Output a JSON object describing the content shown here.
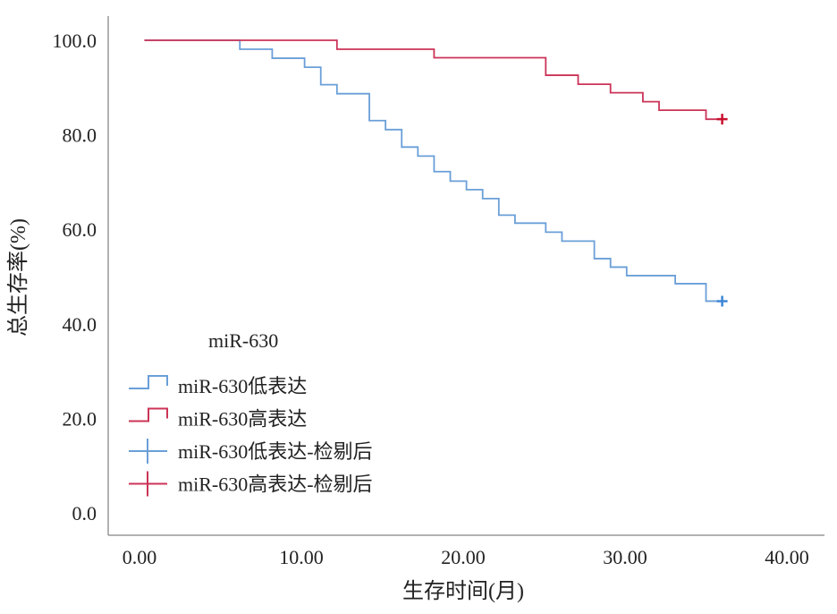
{
  "chart_data": {
    "type": "line",
    "subtype": "kaplan-meier-step",
    "xlabel": "生存时间(月)",
    "ylabel": "总生存率(%)",
    "xlim": [
      0,
      40
    ],
    "ylim": [
      0,
      100
    ],
    "x_ticks": [
      "0.00",
      "10.00",
      "20.00",
      "30.00",
      "40.00"
    ],
    "y_ticks": [
      "0.0",
      "20.0",
      "40.0",
      "60.0",
      "80.0",
      "100.0"
    ],
    "x_tick_values": [
      0,
      10,
      20,
      30,
      40
    ],
    "y_tick_values": [
      0,
      20,
      40,
      60,
      80,
      100
    ],
    "grid": false,
    "legend": {
      "title": "miR-630",
      "placement": "bottom-left",
      "entries": [
        {
          "label": "miR-630低表达",
          "kind": "step",
          "color": "#6a9fd8"
        },
        {
          "label": "miR-630高表达",
          "kind": "step",
          "color": "#cc3357"
        },
        {
          "label": "miR-630低表达-检剔后",
          "kind": "censor",
          "color": "#6a9fd8"
        },
        {
          "label": "miR-630高表达-检剔后",
          "kind": "censor",
          "color": "#cc3357"
        }
      ]
    },
    "series": [
      {
        "name": "miR-630低表达",
        "color": "#6a9fd8",
        "censor_color": "#3d86d6",
        "steps": [
          [
            0.3,
            100
          ],
          [
            6.2,
            98.1
          ],
          [
            8.2,
            96.2
          ],
          [
            10.2,
            94.3
          ],
          [
            11.2,
            90.6
          ],
          [
            12.2,
            88.7
          ],
          [
            14.2,
            83.0
          ],
          [
            15.2,
            81.1
          ],
          [
            16.2,
            77.4
          ],
          [
            17.2,
            75.5
          ],
          [
            18.2,
            72.2
          ],
          [
            19.2,
            70.2
          ],
          [
            20.2,
            68.4
          ],
          [
            21.2,
            66.5
          ],
          [
            22.2,
            63.0
          ],
          [
            23.2,
            61.3
          ],
          [
            25.1,
            59.4
          ],
          [
            26.1,
            57.5
          ],
          [
            28.1,
            53.8
          ],
          [
            29.1,
            52.0
          ],
          [
            30.1,
            50.2
          ],
          [
            33.1,
            48.5
          ],
          [
            35.0,
            44.8
          ]
        ],
        "end": 36.0,
        "censored": [
          [
            36.0,
            44.8
          ]
        ]
      },
      {
        "name": "miR-630高表达",
        "color": "#cc3357",
        "censor_color": "#c8102e",
        "steps": [
          [
            0.3,
            100
          ],
          [
            12.2,
            98.1
          ],
          [
            18.2,
            96.3
          ],
          [
            25.1,
            92.6
          ],
          [
            27.1,
            90.7
          ],
          [
            29.1,
            88.9
          ],
          [
            31.1,
            87.0
          ],
          [
            32.1,
            85.2
          ],
          [
            35.0,
            83.3
          ]
        ],
        "end": 36.0,
        "censored": [
          [
            36.0,
            83.3
          ]
        ]
      }
    ]
  }
}
